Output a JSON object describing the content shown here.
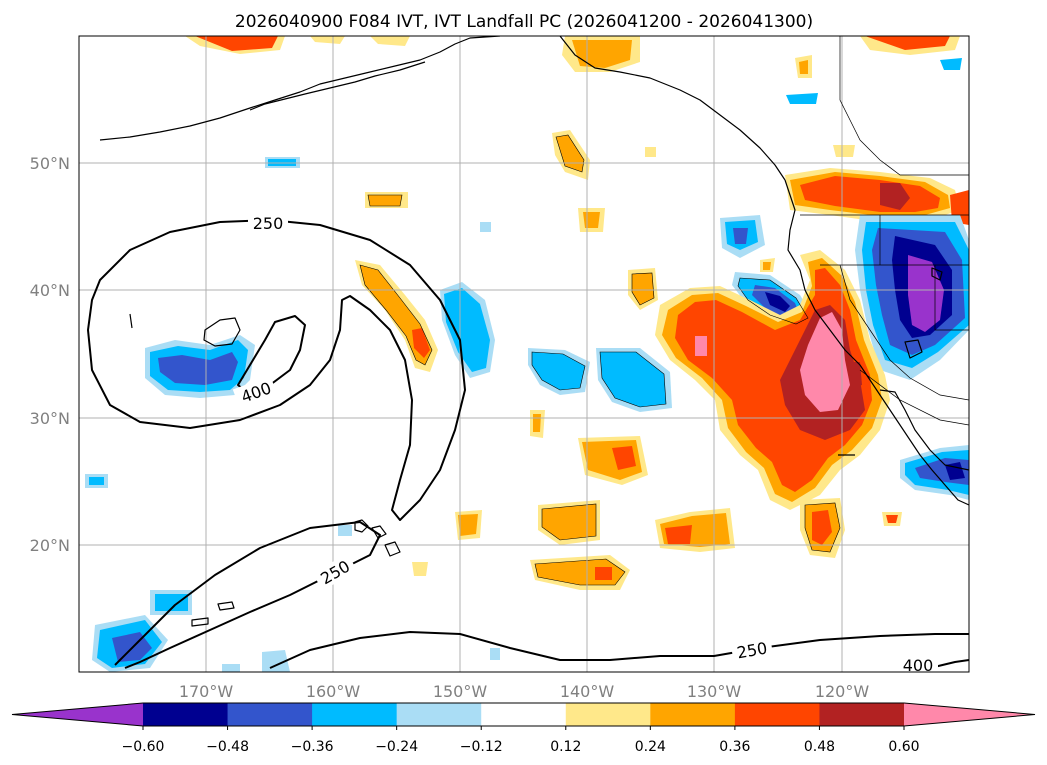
{
  "title": "2026040900 F084 IVT, IVT Landfall PC (2026041200 - 2026041300)",
  "map": {
    "lon_ticks": [
      "170°W",
      "160°W",
      "150°W",
      "140°W",
      "130°W",
      "120°W"
    ],
    "lat_ticks": [
      "50°N",
      "40°N",
      "30°N",
      "20°N"
    ],
    "contour_labels": [
      "250",
      "400",
      "250",
      "250",
      "400"
    ]
  },
  "colorbar": {
    "ticks": [
      "−0.60",
      "−0.48",
      "−0.36",
      "−0.24",
      "−0.12",
      "0.12",
      "0.24",
      "0.36",
      "0.48",
      "0.60"
    ],
    "colors": [
      "#9933cc",
      "#000090",
      "#3355cc",
      "#00bbff",
      "#aaddf5",
      "#ffffff",
      "#ffe88a",
      "#ffa500",
      "#ff4500",
      "#b22222",
      "#ff88aa"
    ]
  }
}
